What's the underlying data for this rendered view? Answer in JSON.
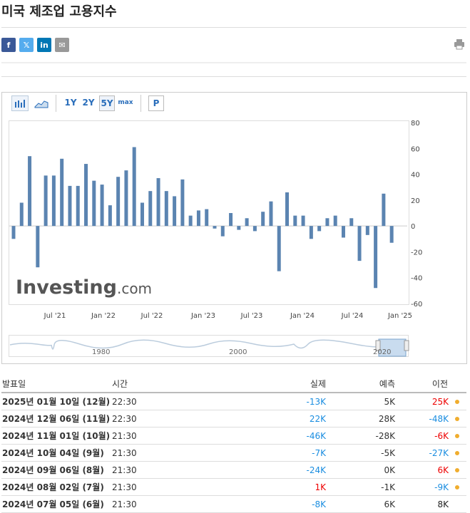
{
  "page": {
    "title": "미국 제조업 고용지수"
  },
  "share": {
    "icons": [
      "facebook-icon",
      "x-icon",
      "linkedin-icon",
      "email-icon",
      "print-icon"
    ],
    "labels": [
      "f",
      "𝕏",
      "in",
      "✉"
    ]
  },
  "toolbar": {
    "range_buttons": [
      "1Y",
      "2Y",
      "5Y",
      "max"
    ],
    "active": "5Y",
    "p_label": "P"
  },
  "logo": {
    "text": "Investing",
    "suffix": ".com"
  },
  "navigator": {
    "labels": [
      "1980",
      "2000",
      "2020"
    ]
  },
  "chart_data": {
    "type": "bar",
    "y_ticks": [
      "80",
      "60",
      "40",
      "20",
      "0",
      "-20",
      "-40",
      "-60"
    ],
    "ylim": [
      -60,
      80
    ],
    "x_tick_labels": [
      "Jul '21",
      "Jan '22",
      "Jul '22",
      "Jan '23",
      "Jul '23",
      "Jan '24",
      "Jul '24",
      "Jan '25"
    ],
    "values": [
      -10,
      18,
      54,
      -32,
      39,
      39,
      52,
      31,
      31,
      48,
      35,
      32,
      16,
      38,
      43,
      61,
      18,
      27,
      37,
      27,
      23,
      36,
      8,
      12,
      13,
      -2,
      -8,
      10,
      -3,
      6,
      -4,
      11,
      19,
      -35,
      26,
      8,
      8,
      -10,
      -4,
      6,
      8,
      -9,
      6,
      -27,
      -7,
      -48,
      25,
      -13
    ],
    "color": "#5b84b1"
  },
  "table": {
    "headers": [
      "발표일",
      "시간",
      "실제",
      "예측",
      "이전"
    ],
    "rows": [
      {
        "date": "2025년 01월 10일 (12월)",
        "time": "22:30",
        "actual": "-13K",
        "actual_color": "pos",
        "forecast": "5K",
        "previous": "25K",
        "prev_color": "neg",
        "dot": true
      },
      {
        "date": "2024년 12월 06일 (11월)",
        "time": "22:30",
        "actual": "22K",
        "actual_color": "pos",
        "forecast": "28K",
        "previous": "-48K",
        "prev_color": "pos",
        "dot": true
      },
      {
        "date": "2024년 11월 01일 (10월)",
        "time": "21:30",
        "actual": "-46K",
        "actual_color": "pos",
        "forecast": "-28K",
        "previous": "-6K",
        "prev_color": "neg",
        "dot": true
      },
      {
        "date": "2024년 10월 04일 (9월)",
        "time": "21:30",
        "actual": "-7K",
        "actual_color": "pos",
        "forecast": "-5K",
        "previous": "-27K",
        "prev_color": "pos",
        "dot": true
      },
      {
        "date": "2024년 09월 06일 (8월)",
        "time": "21:30",
        "actual": "-24K",
        "actual_color": "pos",
        "forecast": "0K",
        "previous": "6K",
        "prev_color": "neg",
        "dot": true
      },
      {
        "date": "2024년 08월 02일 (7월)",
        "time": "21:30",
        "actual": "1K",
        "actual_color": "neg",
        "forecast": "-1K",
        "previous": "-9K",
        "prev_color": "pos",
        "dot": true
      },
      {
        "date": "2024년 07월 05일 (6월)",
        "time": "21:30",
        "actual": "-8K",
        "actual_color": "pos",
        "forecast": "6K",
        "previous": "8K",
        "prev_color": "blk",
        "dot": false
      }
    ]
  }
}
